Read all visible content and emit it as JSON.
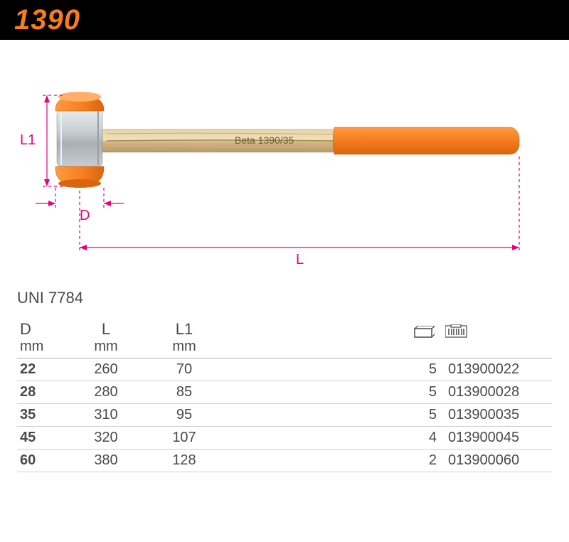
{
  "title": "1390",
  "standard": "UNI 7784",
  "diagram": {
    "labels": {
      "L1": "L1",
      "D": "D",
      "L": "L"
    },
    "handle_text": "Beta  1390/35",
    "colors": {
      "dimension": "#e6007e",
      "head_face": "#f57c1f",
      "head_body": "#c6cdd1",
      "head_highlight": "#e8edf0",
      "handle_wood_light": "#e8d4a8",
      "handle_wood_mid": "#d4b884",
      "handle_wood_dark": "#b89968",
      "handle_grip": "#f57c1f",
      "handle_grip_dark": "#d9650f",
      "handle_text_color": "#6b5a3a"
    },
    "dimension_stroke_width": 1.2,
    "dash_pattern": "4 4"
  },
  "table": {
    "headers_line1": [
      "D",
      "L",
      "L1",
      "",
      "",
      ""
    ],
    "headers_line2": [
      "mm",
      "mm",
      "mm",
      "",
      "",
      ""
    ],
    "icon_qty": "box-icon",
    "icon_code": "barcode-icon",
    "rows": [
      {
        "d": "22",
        "l": "260",
        "l1": "70",
        "qty": "5",
        "code": "013900022"
      },
      {
        "d": "28",
        "l": "280",
        "l1": "85",
        "qty": "5",
        "code": "013900028"
      },
      {
        "d": "35",
        "l": "310",
        "l1": "95",
        "qty": "5",
        "code": "013900035"
      },
      {
        "d": "45",
        "l": "320",
        "l1": "107",
        "qty": "4",
        "code": "013900045"
      },
      {
        "d": "60",
        "l": "380",
        "l1": "128",
        "qty": "2",
        "code": "013900060"
      }
    ]
  }
}
